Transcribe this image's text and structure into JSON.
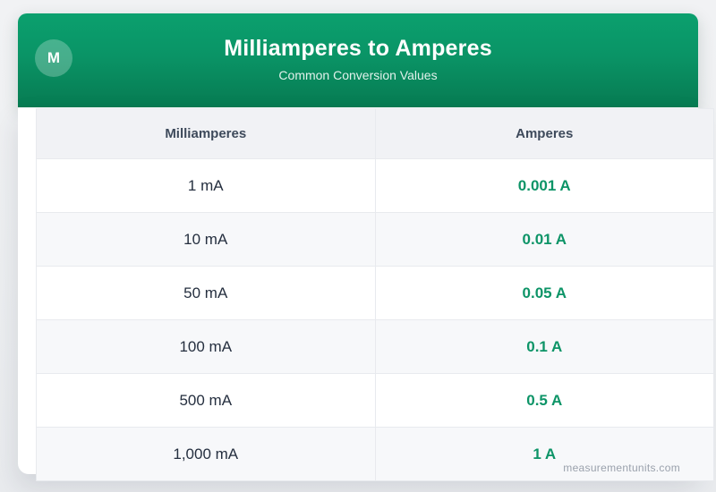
{
  "header": {
    "logo_letter": "M",
    "title": "Milliamperes to Amperes",
    "subtitle": "Common Conversion Values"
  },
  "table": {
    "columns": [
      "Milliamperes",
      "Amperes"
    ],
    "rows": [
      {
        "ma": "1 mA",
        "a": "0.001 A"
      },
      {
        "ma": "10 mA",
        "a": "0.01 A"
      },
      {
        "ma": "50 mA",
        "a": "0.05 A"
      },
      {
        "ma": "100 mA",
        "a": "0.1 A"
      },
      {
        "ma": "500 mA",
        "a": "0.5 A"
      },
      {
        "ma": "1,000 mA",
        "a": "1 A"
      }
    ]
  },
  "footer": {
    "watermark": "measurementunits.com"
  },
  "colors": {
    "brand_green_top": "#0ba06e",
    "brand_green_bottom": "#077b52",
    "value_green": "#0d9467",
    "header_row_bg": "#f1f2f5",
    "alt_row_bg": "#f7f8fa",
    "row_border": "#e8eaee",
    "heading_text": "#3e4a5b",
    "body_text": "#252f3f",
    "watermark_gray": "#9aa1ac"
  }
}
